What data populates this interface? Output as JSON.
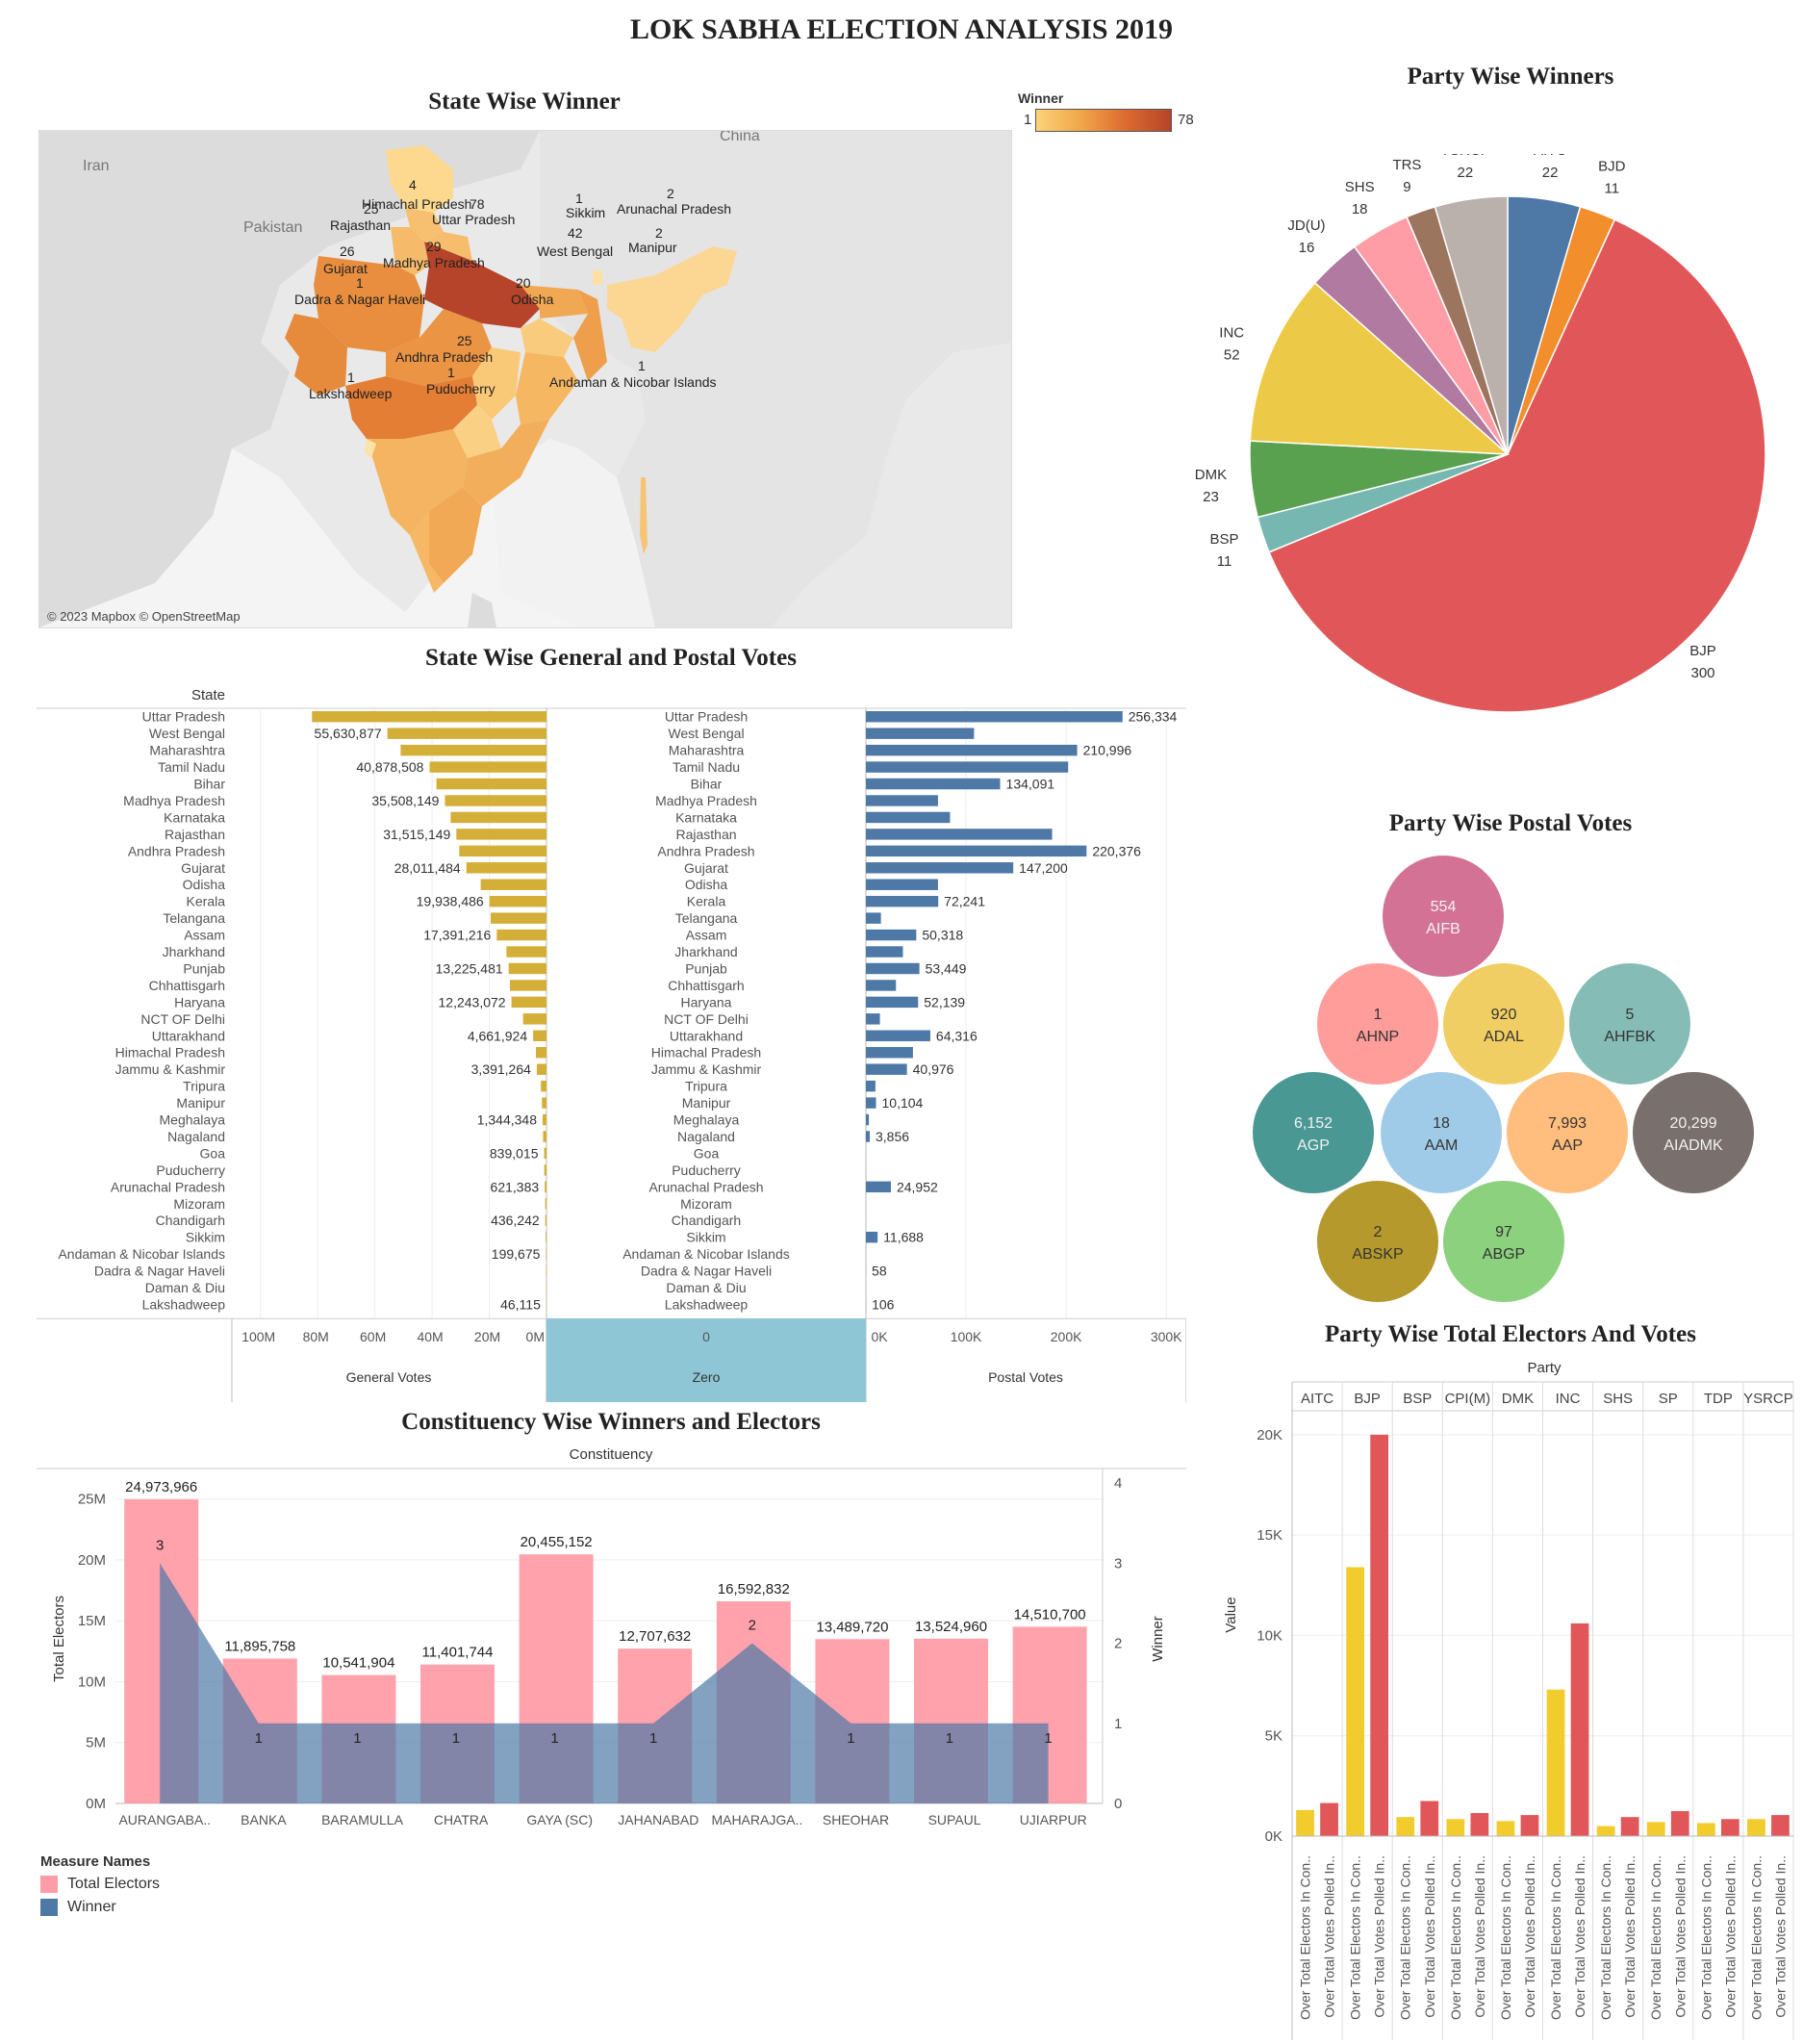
{
  "dashboard_title": "LOK SABHA ELECTION ANALYSIS 2019",
  "colors": {
    "gold": "#D4AF37",
    "blue": "#4E79A7",
    "pink": "#FF9DA7",
    "winnerBlue": "#4E79A7",
    "elecYellow": "#F2CB2C",
    "elecRed": "#E15759",
    "zeroBand": "#8EC6D6"
  },
  "map": {
    "title": "State Wise Winner",
    "legend_title": "Winner",
    "legend_min": "1",
    "legend_max": "78",
    "copyright": "© 2023 Mapbox © OpenStreetMap",
    "countries": [
      "Iran",
      "Pakistan",
      "China"
    ],
    "labels": [
      {
        "name": "Himachal Pradesh",
        "value": "4"
      },
      {
        "name": "Uttar Pradesh",
        "value": "78"
      },
      {
        "name": "Rajasthan",
        "value": "25"
      },
      {
        "name": "Gujarat",
        "value": "26"
      },
      {
        "name": "Madhya Pradesh",
        "value": "29"
      },
      {
        "name": "West Bengal",
        "value": "42"
      },
      {
        "name": "Sikkim",
        "value": "1"
      },
      {
        "name": "Arunachal Pradesh",
        "value": "2"
      },
      {
        "name": "Manipur",
        "value": "2"
      },
      {
        "name": "Dadra & Nagar Haveli",
        "value": "1"
      },
      {
        "name": "Odisha",
        "value": "20"
      },
      {
        "name": "Andhra Pradesh",
        "value": "25"
      },
      {
        "name": "Puducherry",
        "value": "1"
      },
      {
        "name": "Lakshadweep",
        "value": "1"
      },
      {
        "name": "Andaman & Nicobar Islands",
        "value": "1"
      }
    ]
  },
  "chart_data": [
    {
      "type": "pie",
      "title": "Party Wise Winners",
      "slices": [
        {
          "label": "AITC",
          "value": 22,
          "color": "#4E79A7"
        },
        {
          "label": "BJD",
          "value": 11,
          "color": "#F28E2B"
        },
        {
          "label": "BJP",
          "value": 300,
          "color": "#E15759"
        },
        {
          "label": "BSP",
          "value": 11,
          "color": "#76B7B2"
        },
        {
          "label": "DMK",
          "value": 23,
          "color": "#59A14F"
        },
        {
          "label": "INC",
          "value": 52,
          "color": "#EDC948"
        },
        {
          "label": "JD(U)",
          "value": 16,
          "color": "#B07AA1"
        },
        {
          "label": "SHS",
          "value": 18,
          "color": "#FF9DA7"
        },
        {
          "label": "TRS",
          "value": 9,
          "color": "#9C755F"
        },
        {
          "label": "YSRCP",
          "value": 22,
          "color": "#BAB0AC"
        }
      ]
    },
    {
      "type": "bar",
      "title": "State Wise General and Postal Votes",
      "row_header": "State",
      "xlabel_left": "General Votes",
      "xlabel_mid": "Zero",
      "xlabel_right": "Postal Votes",
      "general_ticks": [
        "100M",
        "80M",
        "60M",
        "40M",
        "20M",
        "0M"
      ],
      "zero_tick": "0",
      "postal_ticks": [
        "0K",
        "100K",
        "200K",
        "300K"
      ],
      "general_xlim": [
        0,
        110000000
      ],
      "postal_xlim": [
        0,
        320000
      ],
      "categories": [
        "Uttar Pradesh",
        "West Bengal",
        "Maharashtra",
        "Tamil Nadu",
        "Bihar",
        "Madhya Pradesh",
        "Karnataka",
        "Rajasthan",
        "Andhra Pradesh",
        "Gujarat",
        "Odisha",
        "Kerala",
        "Telangana",
        "Assam",
        "Jharkhand",
        "Punjab",
        "Chhattisgarh",
        "Haryana",
        "NCT OF Delhi",
        "Uttarakhand",
        "Himachal Pradesh",
        "Jammu & Kashmir",
        "Tripura",
        "Manipur",
        "Meghalaya",
        "Nagaland",
        "Goa",
        "Puducherry",
        "Arunachal Pradesh",
        "Mizoram",
        "Chandigarh",
        "Sikkim",
        "Andaman & Nicobar Islands",
        "Dadra & Nagar Haveli",
        "Daman & Diu",
        "Lakshadweep"
      ],
      "general_votes": [
        82000000,
        55630877,
        51000000,
        40878508,
        38500000,
        35508149,
        33500000,
        31515149,
        30500000,
        28011484,
        23000000,
        19938486,
        19500000,
        17391216,
        14000000,
        13225481,
        12800000,
        12243072,
        8200000,
        4661924,
        3700000,
        3391264,
        1950000,
        1600000,
        1344348,
        1200000,
        839015,
        780000,
        621383,
        450000,
        436242,
        300000,
        199675,
        190000,
        120000,
        46115
      ],
      "general_labels": [
        "",
        "55,630,877",
        "",
        "40,878,508",
        "",
        "35,508,149",
        "",
        "31,515,149",
        "",
        "28,011,484",
        "",
        "19,938,486",
        "",
        "17,391,216",
        "",
        "13,225,481",
        "",
        "12,243,072",
        "",
        "4,661,924",
        "",
        "3,391,264",
        "",
        "",
        "1,344,348",
        "",
        "839,015",
        "",
        "621,383",
        "",
        "436,242",
        "",
        "199,675",
        "",
        "",
        "46,115"
      ],
      "postal_votes": [
        256334,
        108000,
        210996,
        202000,
        134091,
        72000,
        84000,
        186000,
        220376,
        147200,
        72000,
        72241,
        15000,
        50318,
        37000,
        53449,
        30000,
        52139,
        14000,
        64316,
        47000,
        40976,
        9500,
        10104,
        3000,
        3856,
        0,
        0,
        24952,
        0,
        0,
        11688,
        0,
        58,
        0,
        106
      ],
      "postal_labels": [
        "256,334",
        "",
        "210,996",
        "",
        "134,091",
        "",
        "",
        "",
        "220,376",
        "147,200",
        "",
        "72,241",
        "",
        "50,318",
        "",
        "53,449",
        "",
        "52,139",
        "",
        "64,316",
        "",
        "40,976",
        "",
        "10,104",
        "",
        "3,856",
        "",
        "",
        "24,952",
        "",
        "",
        "11,688",
        "",
        "58",
        "",
        "106"
      ]
    },
    {
      "type": "bar",
      "title": "Constituency Wise Winners and Electors",
      "xlabel": "Constituency",
      "ylabel": "Total Electors",
      "ylabel_right": "Winner",
      "categories": [
        "AURANGABA..",
        "BANKA",
        "BARAMULLA",
        "CHATRA",
        "GAYA (SC)",
        "JAHANABAD",
        "MAHARAJGA..",
        "SHEOHAR",
        "SUPAUL",
        "UJIARPUR"
      ],
      "series": [
        {
          "name": "Total Electors",
          "values": [
            24973966,
            11895758,
            10541904,
            11401744,
            20455152,
            12707632,
            16592832,
            13489720,
            13524960,
            14510700
          ],
          "labels": [
            "24,973,966",
            "11,895,758",
            "10,541,904",
            "11,401,744",
            "20,455,152",
            "12,707,632",
            "16,592,832",
            "13,489,720",
            "13,524,960",
            "14,510,700"
          ]
        },
        {
          "name": "Winner",
          "values": [
            3,
            1,
            1,
            1,
            1,
            1,
            2,
            1,
            1,
            1
          ],
          "labels": [
            "3",
            "1",
            "1",
            "1",
            "1",
            "1",
            "2",
            "1",
            "1",
            "1"
          ]
        }
      ],
      "left_ticks": [
        "25M",
        "20M",
        "15M",
        "10M",
        "5M",
        "0M"
      ],
      "left_ylim": [
        0,
        27500000
      ],
      "right_ticks": [
        "4",
        "3",
        "2",
        "1",
        "0"
      ],
      "right_ylim": [
        0,
        4
      ],
      "legend_title": "Measure Names",
      "legend_items": [
        "Total Electors",
        "Winner"
      ]
    },
    {
      "type": "scatter",
      "title": "Party Wise Postal Votes",
      "bubbles": [
        {
          "label": "AIFB",
          "value": "554",
          "color": "#D37295",
          "tx": "light"
        },
        {
          "label": "AHNP",
          "value": "1",
          "color": "#FF9D9A",
          "tx": "dark"
        },
        {
          "label": "ADAL",
          "value": "920",
          "color": "#F1CE63",
          "tx": "dark"
        },
        {
          "label": "AHFBK",
          "value": "5",
          "color": "#86BCB6",
          "tx": "dark"
        },
        {
          "label": "AGP",
          "value": "6,152",
          "color": "#499894",
          "tx": "light"
        },
        {
          "label": "AAM",
          "value": "18",
          "color": "#A0CBE8",
          "tx": "dark"
        },
        {
          "label": "AAP",
          "value": "7,993",
          "color": "#FFBE7D",
          "tx": "dark"
        },
        {
          "label": "AIADMK",
          "value": "20,299",
          "color": "#79706E",
          "tx": "light"
        },
        {
          "label": "ABSKP",
          "value": "2",
          "color": "#B6992D",
          "tx": "dark"
        },
        {
          "label": "ABGP",
          "value": "97",
          "color": "#8CD17D",
          "tx": "dark"
        }
      ]
    },
    {
      "type": "bar",
      "title": "Party Wise Total Electors And Votes",
      "column_header": "Party",
      "ylabel": "Value",
      "yticks": [
        "20K",
        "15K",
        "10K",
        "5K",
        "0K"
      ],
      "ylim": [
        0,
        21000
      ],
      "parties": [
        "AITC",
        "BJP",
        "BSP",
        "CPI(M)",
        "DMK",
        "INC",
        "SHS",
        "SP",
        "TDP",
        "YSRCP"
      ],
      "series": [
        {
          "name": "Over Total Electors  In Con..",
          "values": [
            1300,
            13400,
            950,
            850,
            750,
            7300,
            500,
            700,
            650,
            850
          ]
        },
        {
          "name": "Over Total Votes Polled In..",
          "values": [
            1650,
            20000,
            1750,
            1150,
            1050,
            10600,
            950,
            1250,
            850,
            1050
          ]
        }
      ]
    }
  ]
}
